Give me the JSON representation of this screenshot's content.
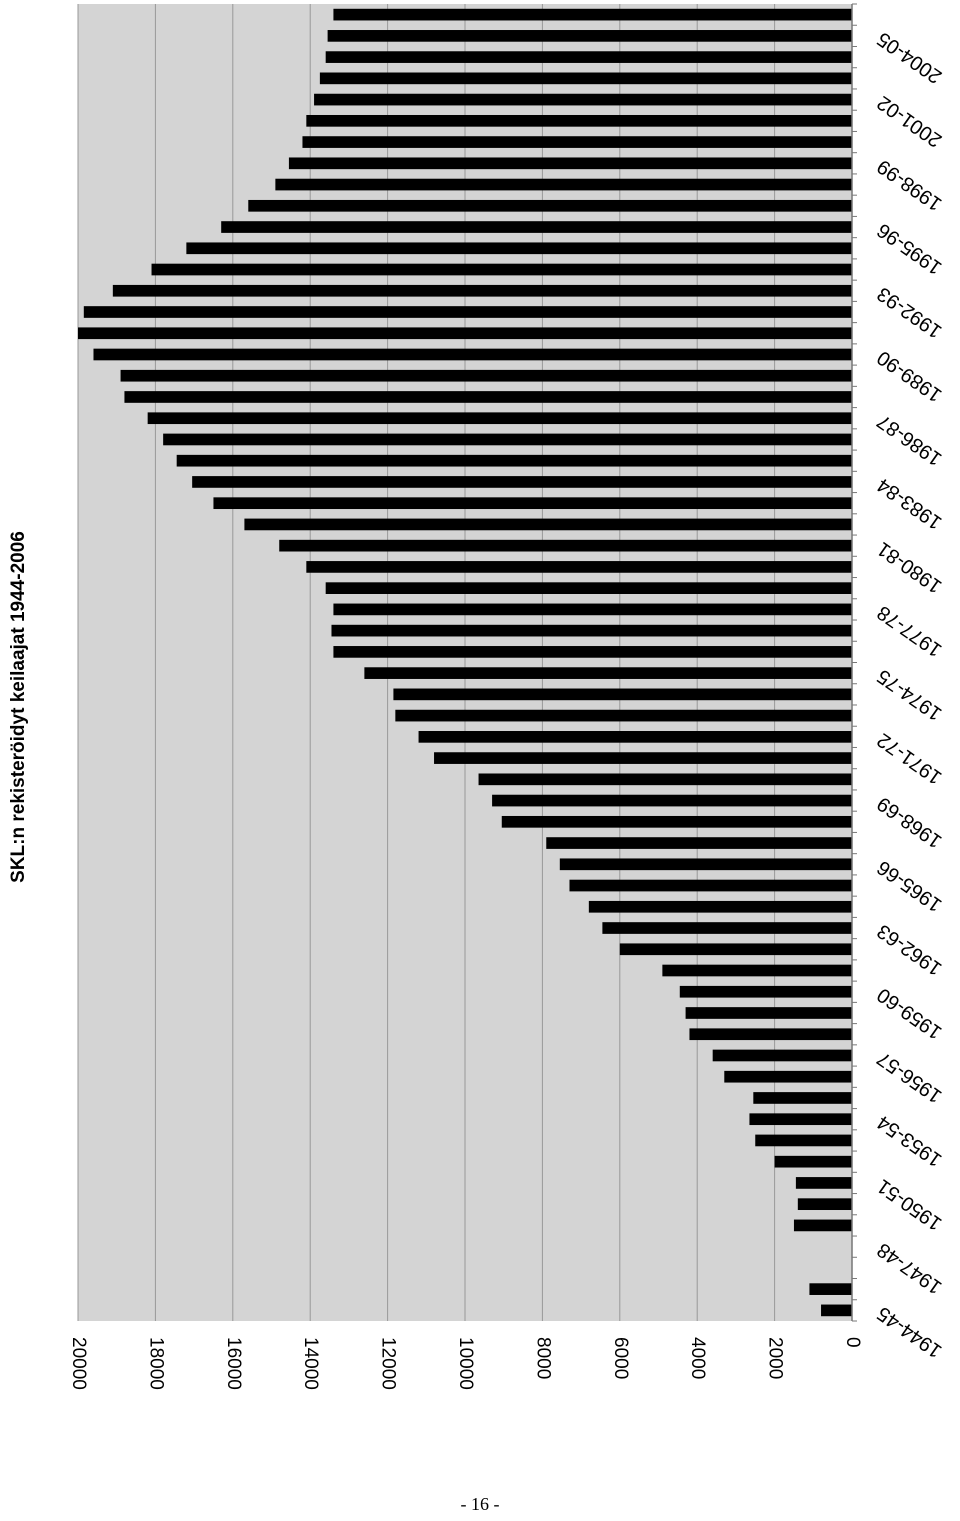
{
  "page": {
    "number": "- 16 -"
  },
  "chart_data": {
    "type": "bar",
    "title": "SKL:n rekisteröidyt keilaajat 1944-2006",
    "xlabel": "",
    "ylabel": "",
    "ylim": [
      0,
      20000
    ],
    "yticks": [
      "0",
      "2000",
      "4000",
      "6000",
      "8000",
      "10000",
      "12000",
      "14000",
      "16000",
      "18000",
      "20000"
    ],
    "grid": true,
    "orientation": "rotated-180",
    "categories": [
      "1944-45",
      "1945-46",
      "1946-47",
      "1947-48",
      "1948-49",
      "1949-50",
      "1950-51",
      "1951-52",
      "1952-53",
      "1953-54",
      "1954-55",
      "1955-56",
      "1956-57",
      "1957-58",
      "1958-59",
      "1959-60",
      "1960-61",
      "1961-62",
      "1962-63",
      "1963-64",
      "1964-65",
      "1965-66",
      "1966-67",
      "1967-68",
      "1968-69",
      "1969-70",
      "1970-71",
      "1971-72",
      "1972-73",
      "1973-74",
      "1974-75",
      "1975-76",
      "1976-77",
      "1977-78",
      "1978-79",
      "1979-80",
      "1980-81",
      "1981-82",
      "1982-83",
      "1983-84",
      "1984-85",
      "1985-86",
      "1986-87",
      "1987-88",
      "1988-89",
      "1989-90",
      "1990-91",
      "1991-92",
      "1992-93",
      "1993-94",
      "1994-95",
      "1995-96",
      "1996-97",
      "1997-98",
      "1998-99",
      "1999-00",
      "2000-01",
      "2001-02",
      "2002-03",
      "2003-04",
      "2004-05",
      "2005-06"
    ],
    "tick_labels": [
      "1944-45",
      "1947-48",
      "1950-51",
      "1953-54",
      "1956-57",
      "1959-60",
      "1962-63",
      "1965-66",
      "1968-69",
      "1971-72",
      "1974-75",
      "1977-78",
      "1980-81",
      "1983-84",
      "1986-87",
      "1989-90",
      "1992-93",
      "1995-96",
      "1998-99",
      "2001-02",
      "2004-05"
    ],
    "values": [
      800,
      1100,
      null,
      null,
      1500,
      1400,
      1450,
      2000,
      2500,
      2650,
      2550,
      3300,
      3600,
      4200,
      4300,
      4450,
      4900,
      6000,
      6450,
      6800,
      7300,
      7550,
      7900,
      9050,
      9300,
      9650,
      10800,
      11200,
      11800,
      11850,
      12600,
      13400,
      13450,
      13400,
      13600,
      14100,
      14800,
      15700,
      16500,
      17050,
      17450,
      17800,
      18200,
      18800,
      18900,
      19600,
      20000,
      19850,
      19100,
      18100,
      17200,
      16300,
      15600,
      14900,
      14550,
      14200,
      14100,
      13900,
      13750,
      13600,
      13550,
      13400
    ],
    "colors": {
      "bar": "#000000",
      "plot_bg": "#d4d4d4",
      "grid": "#999999",
      "axis": "#777777"
    }
  }
}
